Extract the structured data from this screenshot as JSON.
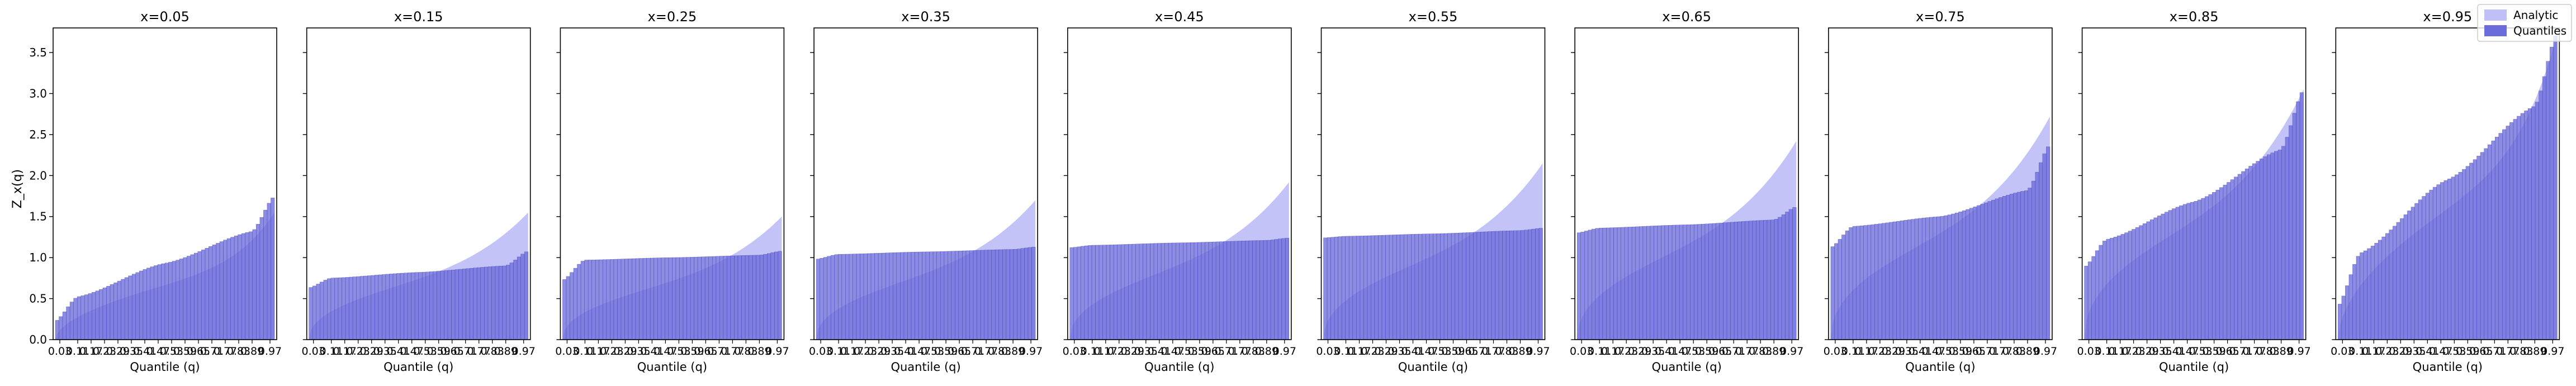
{
  "figure": {
    "shared_ylabel": "Z_x(q)",
    "legend": {
      "placement": "top-right",
      "entries": [
        {
          "label": "Analytic",
          "color": "#c0c0f8"
        },
        {
          "label": "Quantiles",
          "color": "#6b6bdb"
        }
      ]
    }
  },
  "chart_data": [
    {
      "type": "bar",
      "title": "x=0.05",
      "xlabel": "Quantile (q)",
      "ylabel": "Z_x(q)",
      "ylim": [
        0,
        3.8
      ],
      "x_ticks": [
        "0.03",
        "0.11",
        "0.17",
        "0.23",
        "0.29",
        "0.35",
        "0.41",
        "0.47",
        "0.53",
        "0.59",
        "0.65",
        "0.71",
        "0.77",
        "0.83",
        "0.89",
        "0.97"
      ],
      "y_ticks": [
        "0.0",
        "0.5",
        "1.0",
        "1.5",
        "2.0",
        "2.5",
        "3.0",
        "3.5"
      ],
      "analytic": {
        "q_start": 0.01,
        "q_end": 0.99,
        "z_start": 0.0,
        "z_mid": 0.93,
        "z_end": 1.55,
        "shape": "concave-rise"
      },
      "quantiles": {
        "q_start": 0.01,
        "q_end": 0.99,
        "n": 60,
        "z_start": 0.22,
        "z_1": 0.52,
        "z_mid": 0.93,
        "z_9": 1.32,
        "z_end": 1.75
      }
    },
    {
      "type": "bar",
      "title": "x=0.15",
      "xlabel": "Quantile (q)",
      "ylim": [
        0,
        3.8
      ],
      "x_ticks": [
        "0.03",
        "0.11",
        "0.17",
        "0.23",
        "0.29",
        "0.35",
        "0.41",
        "0.47",
        "0.53",
        "0.59",
        "0.65",
        "0.71",
        "0.77",
        "0.83",
        "0.89",
        "0.97"
      ],
      "analytic": {
        "q_start": 0.01,
        "q_end": 0.99,
        "z_start": 0.0,
        "z_mid": 0.78,
        "z_end": 1.55,
        "shape": "s-rise"
      },
      "quantiles": {
        "q_start": 0.01,
        "q_end": 0.99,
        "n": 60,
        "z_start": 0.63,
        "z_1": 0.75,
        "z_mid": 0.82,
        "z_9": 0.9,
        "z_end": 1.08
      }
    },
    {
      "type": "bar",
      "title": "x=0.25",
      "xlabel": "Quantile (q)",
      "ylim": [
        0,
        3.8
      ],
      "x_ticks": [
        "0.03",
        "0.11",
        "0.17",
        "0.23",
        "0.29",
        "0.35",
        "0.41",
        "0.47",
        "0.53",
        "0.59",
        "0.65",
        "0.71",
        "0.77",
        "0.83",
        "0.89",
        "0.97"
      ],
      "analytic": {
        "q_start": 0.01,
        "q_end": 0.99,
        "z_start": 0.0,
        "z_mid": 0.82,
        "z_end": 1.5,
        "shape": "s-rise"
      },
      "quantiles": {
        "q_start": 0.01,
        "q_end": 0.99,
        "n": 60,
        "z_start": 0.72,
        "z_1": 0.97,
        "z_mid": 1.0,
        "z_9": 1.03,
        "z_end": 1.08
      }
    },
    {
      "type": "bar",
      "title": "x=0.35",
      "xlabel": "Quantile (q)",
      "ylim": [
        0,
        3.8
      ],
      "x_ticks": [
        "0.03",
        "0.11",
        "0.17",
        "0.23",
        "0.29",
        "0.35",
        "0.41",
        "0.47",
        "0.53",
        "0.59",
        "0.65",
        "0.71",
        "0.77",
        "0.83",
        "0.89",
        "0.97"
      ],
      "analytic": {
        "q_start": 0.01,
        "q_end": 0.99,
        "z_start": 0.0,
        "z_mid": 0.88,
        "z_end": 1.7,
        "shape": "s-rise"
      },
      "quantiles": {
        "q_start": 0.01,
        "q_end": 0.99,
        "n": 60,
        "z_start": 0.98,
        "z_1": 1.04,
        "z_mid": 1.07,
        "z_9": 1.1,
        "z_end": 1.13
      }
    },
    {
      "type": "bar",
      "title": "x=0.45",
      "xlabel": "Quantile (q)",
      "ylim": [
        0,
        3.8
      ],
      "x_ticks": [
        "0.03",
        "0.11",
        "0.17",
        "0.23",
        "0.29",
        "0.35",
        "0.41",
        "0.47",
        "0.53",
        "0.59",
        "0.65",
        "0.71",
        "0.77",
        "0.83",
        "0.89",
        "0.97"
      ],
      "analytic": {
        "q_start": 0.01,
        "q_end": 0.99,
        "z_start": 0.0,
        "z_mid": 0.98,
        "z_end": 1.92,
        "shape": "s-rise"
      },
      "quantiles": {
        "q_start": 0.01,
        "q_end": 0.99,
        "n": 60,
        "z_start": 1.12,
        "z_1": 1.15,
        "z_mid": 1.18,
        "z_9": 1.21,
        "z_end": 1.24
      }
    },
    {
      "type": "bar",
      "title": "x=0.55",
      "xlabel": "Quantile (q)",
      "ylim": [
        0,
        3.8
      ],
      "x_ticks": [
        "0.03",
        "0.11",
        "0.17",
        "0.23",
        "0.29",
        "0.35",
        "0.41",
        "0.47",
        "0.53",
        "0.59",
        "0.65",
        "0.71",
        "0.77",
        "0.83",
        "0.89",
        "0.97"
      ],
      "analytic": {
        "q_start": 0.01,
        "q_end": 0.99,
        "z_start": 0.0,
        "z_mid": 1.1,
        "z_end": 2.15,
        "shape": "s-rise"
      },
      "quantiles": {
        "q_start": 0.01,
        "q_end": 0.99,
        "n": 60,
        "z_start": 1.24,
        "z_1": 1.26,
        "z_mid": 1.29,
        "z_9": 1.33,
        "z_end": 1.36
      }
    },
    {
      "type": "bar",
      "title": "x=0.65",
      "xlabel": "Quantile (q)",
      "ylim": [
        0,
        3.8
      ],
      "x_ticks": [
        "0.03",
        "0.11",
        "0.17",
        "0.23",
        "0.29",
        "0.35",
        "0.41",
        "0.47",
        "0.53",
        "0.59",
        "0.65",
        "0.71",
        "0.77",
        "0.83",
        "0.89",
        "0.97"
      ],
      "analytic": {
        "q_start": 0.01,
        "q_end": 0.99,
        "z_start": 0.0,
        "z_mid": 1.22,
        "z_end": 2.42,
        "shape": "s-rise"
      },
      "quantiles": {
        "q_start": 0.01,
        "q_end": 0.99,
        "n": 60,
        "z_start": 1.3,
        "z_1": 1.36,
        "z_mid": 1.4,
        "z_9": 1.46,
        "z_end": 1.62
      }
    },
    {
      "type": "bar",
      "title": "x=0.75",
      "xlabel": "Quantile (q)",
      "ylim": [
        0,
        3.8
      ],
      "x_ticks": [
        "0.03",
        "0.11",
        "0.17",
        "0.23",
        "0.29",
        "0.35",
        "0.41",
        "0.47",
        "0.53",
        "0.59",
        "0.65",
        "0.71",
        "0.77",
        "0.83",
        "0.89",
        "0.97"
      ],
      "analytic": {
        "q_start": 0.01,
        "q_end": 0.99,
        "z_start": 0.0,
        "z_mid": 1.42,
        "z_end": 2.72,
        "shape": "s-rise"
      },
      "quantiles": {
        "q_start": 0.01,
        "q_end": 0.99,
        "n": 60,
        "z_start": 1.12,
        "z_1": 1.38,
        "z_mid": 1.5,
        "z_9": 1.82,
        "z_end": 2.38
      }
    },
    {
      "type": "bar",
      "title": "x=0.85",
      "xlabel": "Quantile (q)",
      "ylim": [
        0,
        3.8
      ],
      "x_ticks": [
        "0.03",
        "0.11",
        "0.17",
        "0.23",
        "0.29",
        "0.35",
        "0.41",
        "0.47",
        "0.53",
        "0.59",
        "0.65",
        "0.71",
        "0.77",
        "0.83",
        "0.89",
        "0.97"
      ],
      "analytic": {
        "q_start": 0.01,
        "q_end": 0.99,
        "z_start": 0.0,
        "z_mid": 1.62,
        "z_end": 3.05,
        "shape": "s-rise"
      },
      "quantiles": {
        "q_start": 0.01,
        "q_end": 0.99,
        "n": 60,
        "z_start": 0.88,
        "z_1": 1.22,
        "z_mid": 1.68,
        "z_9": 2.32,
        "z_end": 3.05
      }
    },
    {
      "type": "bar",
      "title": "x=0.95",
      "xlabel": "Quantile (q)",
      "ylim": [
        0,
        3.8
      ],
      "x_ticks": [
        "0.03",
        "0.11",
        "0.17",
        "0.23",
        "0.29",
        "0.35",
        "0.41",
        "0.47",
        "0.53",
        "0.59",
        "0.65",
        "0.71",
        "0.77",
        "0.83",
        "0.89",
        "0.97"
      ],
      "analytic": {
        "q_start": 0.01,
        "q_end": 0.99,
        "z_start": 0.0,
        "z_mid": 1.95,
        "z_end": 3.72,
        "shape": "concave-rise"
      },
      "quantiles": {
        "q_start": 0.01,
        "q_end": 0.99,
        "n": 60,
        "z_start": 0.4,
        "z_1": 1.05,
        "z_mid": 1.95,
        "z_9": 2.85,
        "z_end": 3.75
      }
    }
  ]
}
